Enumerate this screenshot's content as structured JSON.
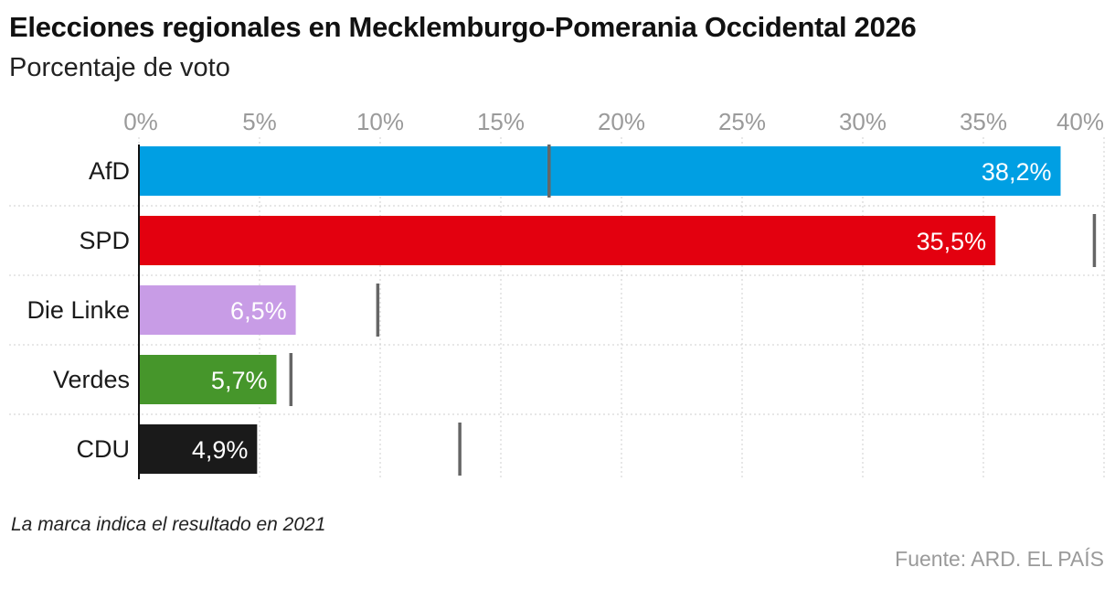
{
  "header": {
    "title": "Elecciones regionales en Mecklemburgo-Pomerania Occidental 2026",
    "subtitle": "Porcentaje de voto"
  },
  "footer": {
    "note": "La marca indica el resultado en 2021",
    "source": "Fuente: ARD. EL PAÍS"
  },
  "chart_data": {
    "type": "bar",
    "orientation": "horizontal",
    "categories": [
      "AfD",
      "SPD",
      "Die Linke",
      "Verdes",
      "CDU"
    ],
    "values": [
      38.2,
      35.5,
      6.5,
      5.7,
      4.9
    ],
    "value_labels": [
      "38,2%",
      "35,5%",
      "6,5%",
      "5,7%",
      "4,9%"
    ],
    "previous_2021": [
      17.0,
      39.6,
      9.9,
      6.3,
      13.3
    ],
    "colors": [
      "#009fe3",
      "#e3000f",
      "#c89ce6",
      "#46962b",
      "#1a1a1a"
    ],
    "xlim": [
      0,
      40
    ],
    "ticks": [
      0,
      5,
      10,
      15,
      20,
      25,
      30,
      35,
      40
    ],
    "tick_labels": [
      "0%",
      "5%",
      "10%",
      "15%",
      "20%",
      "25%",
      "30%",
      "35%",
      "40%"
    ],
    "grid": true,
    "axis_position": "top",
    "marker_color": "#666666"
  }
}
